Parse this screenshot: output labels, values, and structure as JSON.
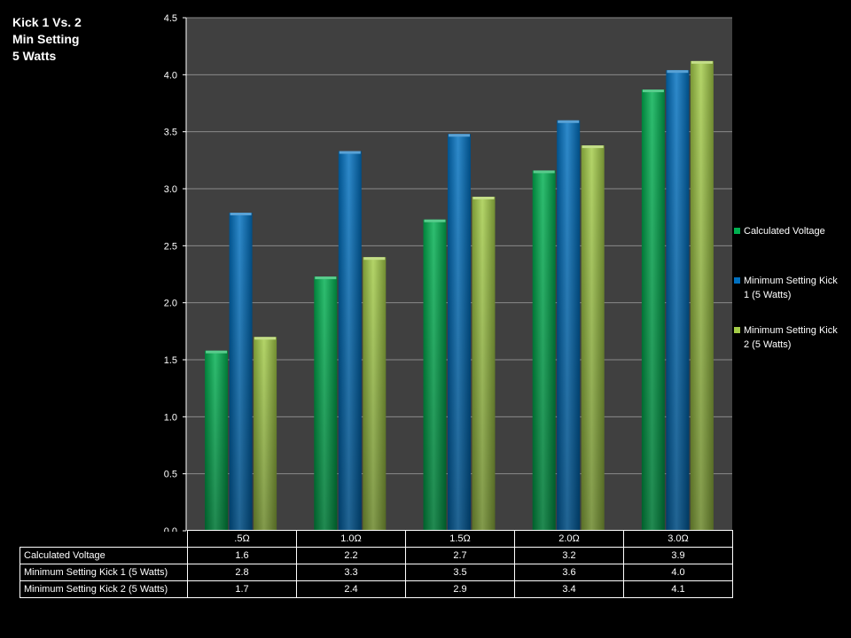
{
  "title_lines": [
    "Kick 1 Vs. 2",
    "Min Setting",
    "5 Watts"
  ],
  "colors": {
    "background": "#000000",
    "plot_area": "#404040",
    "gridline": "#8a8a8a",
    "series": [
      "#00b050",
      "#0070c0",
      "#a4cc48"
    ]
  },
  "chart_data": {
    "type": "bar",
    "categories": [
      ".5Ω",
      "1.0Ω",
      "1.5Ω",
      "2.0Ω",
      "3.0Ω"
    ],
    "series": [
      {
        "name": "Calculated Voltage",
        "values": [
          1.58,
          2.23,
          2.73,
          3.16,
          3.87
        ]
      },
      {
        "name": "Minimum Setting Kick 1 (5 Watts)",
        "values": [
          2.79,
          3.33,
          3.48,
          3.6,
          4.04
        ]
      },
      {
        "name": "Minimum Setting Kick 2 (5 Watts)",
        "values": [
          1.7,
          2.4,
          2.93,
          3.38,
          4.12
        ]
      }
    ],
    "ylim": [
      0,
      4.5
    ],
    "yticks": [
      "0.0",
      "0.5",
      "1.0",
      "1.5",
      "2.0",
      "2.5",
      "3.0",
      "3.5",
      "4.0",
      "4.5"
    ],
    "grid": true,
    "legend_position": "right"
  },
  "legend": [
    {
      "lines": [
        "Calculated Voltage"
      ]
    },
    {
      "lines": [
        "Minimum Setting Kick",
        "1 (5 Watts)"
      ]
    },
    {
      "lines": [
        "Minimum Setting Kick",
        "2 (5 Watts)"
      ]
    }
  ],
  "data_table": {
    "rows": [
      {
        "label": "Calculated Voltage",
        "values": [
          "1.6",
          "2.2",
          "2.7",
          "3.2",
          "3.9"
        ]
      },
      {
        "label": "Minimum Setting Kick 1 (5 Watts)",
        "values": [
          "2.8",
          "3.3",
          "3.5",
          "3.6",
          "4.0"
        ]
      },
      {
        "label": "Minimum Setting Kick 2 (5 Watts)",
        "values": [
          "1.7",
          "2.4",
          "2.9",
          "3.4",
          "4.1"
        ]
      }
    ]
  }
}
